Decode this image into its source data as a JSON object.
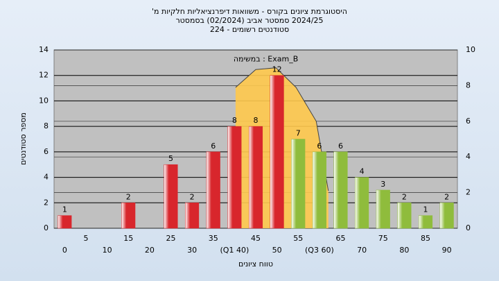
{
  "chart_data": {
    "type": "bar",
    "title": [
      "היסטוגרמת ציונים בקורס - משוואות דיפרנציאליות חלקיות מ'",
      "2024/25 סמסטר אביב (02/2024) בסמסטר",
      "סטודנטים רשומים - 224"
    ],
    "xlabel": "טווח ציונים",
    "ylabel": "מספר סטודנטים",
    "categories": [
      "0",
      "5",
      "10",
      "15",
      "20",
      "25",
      "30",
      "35",
      "(Q1 40)",
      "45",
      "50",
      "55",
      "(Q3 60)",
      "65",
      "70",
      "75",
      "80",
      "85",
      "90"
    ],
    "values": [
      1,
      0,
      0,
      2,
      0,
      5,
      2,
      6,
      8,
      8,
      12,
      7,
      6,
      6,
      4,
      3,
      2,
      1,
      2
    ],
    "colors": [
      "#d8262c",
      "#d8262c",
      "#d8262c",
      "#d8262c",
      "#d8262c",
      "#d8262c",
      "#d8262c",
      "#d8262c",
      "#d8262c",
      "#d8262c",
      "#d8262c",
      "#8fbc3c",
      "#8fbc3c",
      "#8fbc3c",
      "#8fbc3c",
      "#8fbc3c",
      "#8fbc3c",
      "#8fbc3c",
      "#8fbc3c"
    ],
    "ylim": [
      0,
      14
    ],
    "yticks": [
      0,
      2,
      4,
      6,
      8,
      10,
      12,
      14
    ],
    "y2lim": [
      0,
      10
    ],
    "y2ticks": [
      0,
      2,
      4,
      6,
      8,
      10
    ],
    "xlim": [
      -5,
      95
    ],
    "area": {
      "name": "Exam_B : במשימה",
      "axis": "y2",
      "color": "#ffc94d",
      "x": [
        40,
        45,
        50,
        55,
        60,
        63
      ],
      "values": [
        7.9,
        8.9,
        9.0,
        7.9,
        6.0,
        2.1
      ]
    },
    "grid": true
  }
}
